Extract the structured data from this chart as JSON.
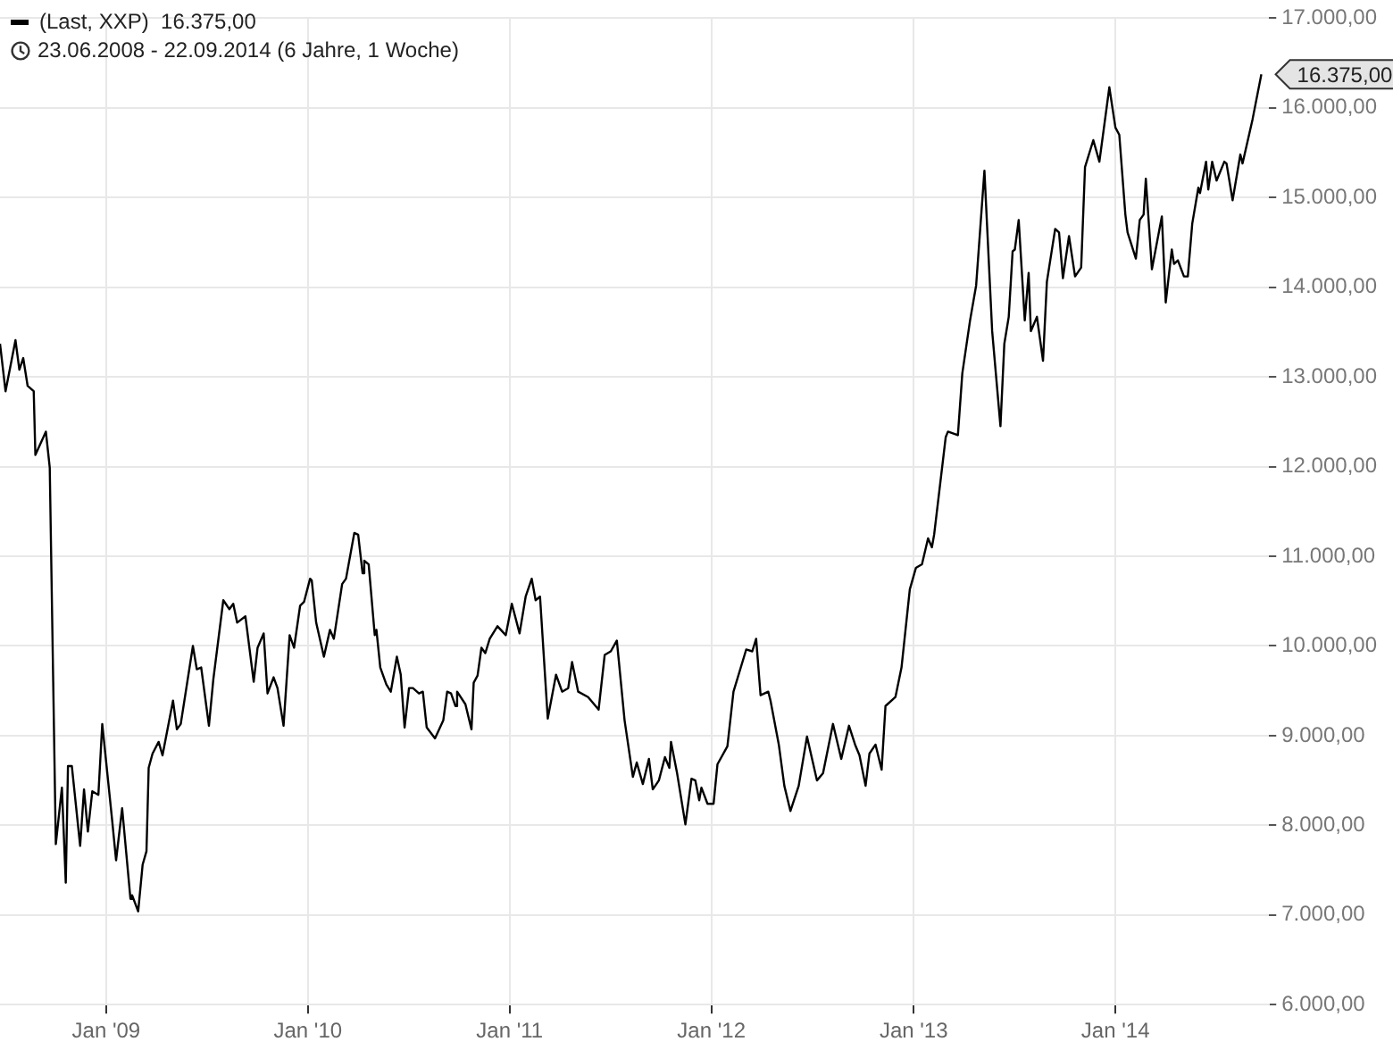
{
  "chart_data": {
    "type": "line",
    "subtitle": "23.06.2008 - 22.09.2014 (6 Jahre, 1 Woche)",
    "legend": "top left",
    "grid": true,
    "marker": "none",
    "line_style": "solid",
    "xlim": [
      "2008-06-23",
      "2014-10-06"
    ],
    "xticks": [
      {
        "value": "2009-01-01",
        "label": "Jan '09"
      },
      {
        "value": "2010-01-01",
        "label": "Jan '10"
      },
      {
        "value": "2011-01-01",
        "label": "Jan '11"
      },
      {
        "value": "2012-01-01",
        "label": "Jan '12"
      },
      {
        "value": "2013-01-01",
        "label": "Jan '13"
      },
      {
        "value": "2014-01-01",
        "label": "Jan '14"
      }
    ],
    "ylim": [
      6000,
      17000
    ],
    "yticks": [
      {
        "value": 6000,
        "label": "6.000,00"
      },
      {
        "value": 7000,
        "label": "7.000,00"
      },
      {
        "value": 8000,
        "label": "8.000,00"
      },
      {
        "value": 9000,
        "label": "9.000,00"
      },
      {
        "value": 10000,
        "label": "10.000,00"
      },
      {
        "value": 11000,
        "label": "11.000,00"
      },
      {
        "value": 12000,
        "label": "12.000,00"
      },
      {
        "value": 13000,
        "label": "13.000,00"
      },
      {
        "value": 14000,
        "label": "14.000,00"
      },
      {
        "value": 15000,
        "label": "15.000,00"
      },
      {
        "value": 16000,
        "label": "16.000,00"
      },
      {
        "value": 17000,
        "label": "17.000,00"
      }
    ],
    "annotations": [
      {
        "text": "16.375,00",
        "x": "2014-09-22",
        "y": 16375
      }
    ],
    "x": [
      "2008-06-23",
      "2008-07-03",
      "2008-07-21",
      "2008-07-28",
      "2008-08-04",
      "2008-08-12",
      "2008-08-23",
      "2008-08-26",
      "2008-09-14",
      "2008-09-21",
      "2008-10-02",
      "2008-10-13",
      "2008-10-20",
      "2008-10-24",
      "2008-10-31",
      "2008-11-15",
      "2008-11-22",
      "2008-11-29",
      "2008-12-07",
      "2008-12-18",
      "2008-12-25",
      "2009-01-12",
      "2009-01-19",
      "2009-01-30",
      "2009-02-14",
      "2009-02-17",
      "2009-02-28",
      "2009-03-08",
      "2009-03-15",
      "2009-03-19",
      "2009-03-26",
      "2009-04-06",
      "2009-04-13",
      "2009-05-02",
      "2009-05-09",
      "2009-05-16",
      "2009-06-07",
      "2009-06-14",
      "2009-06-22",
      "2009-07-06",
      "2009-07-14",
      "2009-08-01",
      "2009-08-12",
      "2009-08-19",
      "2009-08-26",
      "2009-09-10",
      "2009-09-25",
      "2009-10-02",
      "2009-10-13",
      "2009-10-20",
      "2009-10-31",
      "2009-11-07",
      "2009-11-18",
      "2009-11-29",
      "2009-12-07",
      "2009-12-18",
      "2009-12-25",
      "2010-01-05",
      "2010-01-08",
      "2010-01-16",
      "2010-01-30",
      "2010-02-10",
      "2010-02-17",
      "2010-03-04",
      "2010-03-11",
      "2010-03-26",
      "2010-04-02",
      "2010-04-10",
      "2010-04-13",
      "2010-04-21",
      "2010-05-02",
      "2010-05-05",
      "2010-05-12",
      "2010-05-23",
      "2010-05-31",
      "2010-06-11",
      "2010-06-18",
      "2010-06-25",
      "2010-07-03",
      "2010-07-10",
      "2010-07-21",
      "2010-07-28",
      "2010-08-04",
      "2010-08-19",
      "2010-09-03",
      "2010-09-10",
      "2010-09-17",
      "2010-09-25",
      "2010-09-28",
      "2010-10-13",
      "2010-10-24",
      "2010-10-28",
      "2010-11-04",
      "2010-11-11",
      "2010-11-18",
      "2010-11-26",
      "2010-12-10",
      "2010-12-25",
      "2011-01-05",
      "2011-01-19",
      "2011-01-30",
      "2011-02-10",
      "2011-02-17",
      "2011-02-25",
      "2011-03-11",
      "2011-03-26",
      "2011-04-06",
      "2011-04-17",
      "2011-04-24",
      "2011-05-05",
      "2011-05-23",
      "2011-06-11",
      "2011-06-22",
      "2011-07-03",
      "2011-07-14",
      "2011-07-28",
      "2011-08-12",
      "2011-08-19",
      "2011-08-30",
      "2011-09-10",
      "2011-09-17",
      "2011-09-28",
      "2011-10-09",
      "2011-10-17",
      "2011-10-20",
      "2011-10-31",
      "2011-11-15",
      "2011-11-26",
      "2011-12-03",
      "2011-12-10",
      "2011-12-14",
      "2011-12-25",
      "2012-01-05",
      "2012-01-12",
      "2012-01-30",
      "2012-02-10",
      "2012-03-04",
      "2012-03-15",
      "2012-03-22",
      "2012-03-30",
      "2012-04-13",
      "2012-04-17",
      "2012-05-02",
      "2012-05-12",
      "2012-05-23",
      "2012-06-07",
      "2012-06-22",
      "2012-07-10",
      "2012-07-21",
      "2012-08-08",
      "2012-08-23",
      "2012-09-06",
      "2012-09-17",
      "2012-09-25",
      "2012-10-06",
      "2012-10-13",
      "2012-10-24",
      "2012-11-04",
      "2012-11-11",
      "2012-11-29",
      "2012-12-10",
      "2012-12-25",
      "2013-01-05",
      "2013-01-16",
      "2013-01-27",
      "2013-02-03",
      "2013-02-07",
      "2013-02-28",
      "2013-03-04",
      "2013-03-22",
      "2013-03-30",
      "2013-04-13",
      "2013-04-24",
      "2013-05-09",
      "2013-05-23",
      "2013-06-07",
      "2013-06-14",
      "2013-06-22",
      "2013-06-29",
      "2013-07-03",
      "2013-07-10",
      "2013-07-21",
      "2013-07-28",
      "2013-08-01",
      "2013-08-12",
      "2013-08-23",
      "2013-08-30",
      "2013-09-14",
      "2013-09-21",
      "2013-09-28",
      "2013-10-09",
      "2013-10-20",
      "2013-10-31",
      "2013-11-07",
      "2013-11-22",
      "2013-12-03",
      "2013-12-21",
      "2014-01-01",
      "2014-01-08",
      "2014-01-19",
      "2014-01-23",
      "2014-02-07",
      "2014-02-14",
      "2014-02-21",
      "2014-02-25",
      "2014-03-08",
      "2014-03-26",
      "2014-04-02",
      "2014-04-13",
      "2014-04-17",
      "2014-04-24",
      "2014-05-05",
      "2014-05-12",
      "2014-05-20",
      "2014-05-31",
      "2014-06-03",
      "2014-06-14",
      "2014-06-18",
      "2014-06-25",
      "2014-07-03",
      "2014-07-17",
      "2014-07-21",
      "2014-08-01",
      "2014-08-15",
      "2014-08-19",
      "2014-09-06",
      "2014-09-22"
    ],
    "series": [
      {
        "name": "(Last, XXP)  16.375,00",
        "color": "#000000",
        "values": [
          13370,
          12840,
          13410,
          13080,
          13210,
          12900,
          12840,
          12130,
          12390,
          11990,
          7790,
          8420,
          7360,
          8660,
          8660,
          7770,
          8400,
          7930,
          8380,
          8340,
          9130,
          8050,
          7610,
          8190,
          7180,
          7220,
          7040,
          7560,
          7710,
          8640,
          8800,
          8930,
          8780,
          9390,
          9070,
          9130,
          10000,
          9740,
          9760,
          9110,
          9630,
          10510,
          10410,
          10470,
          10260,
          10330,
          9600,
          9980,
          10140,
          9470,
          9650,
          9530,
          9110,
          10120,
          9980,
          10450,
          10490,
          10750,
          10730,
          10260,
          9880,
          10180,
          10080,
          10690,
          10750,
          11260,
          11240,
          10810,
          10950,
          10910,
          10120,
          10180,
          9760,
          9570,
          9490,
          9880,
          9680,
          9090,
          9530,
          9530,
          9470,
          9490,
          9090,
          8970,
          9170,
          9490,
          9470,
          9330,
          9490,
          9350,
          9070,
          9590,
          9670,
          9980,
          9920,
          10080,
          10220,
          10120,
          10470,
          10140,
          10550,
          10750,
          10510,
          10550,
          9190,
          9680,
          9490,
          9530,
          9820,
          9490,
          9430,
          9290,
          9900,
          9940,
          10060,
          9170,
          8540,
          8700,
          8460,
          8740,
          8400,
          8500,
          8760,
          8640,
          8930,
          8580,
          8010,
          8520,
          8500,
          8280,
          8420,
          8240,
          8240,
          8680,
          8880,
          9490,
          9960,
          9940,
          10080,
          9450,
          9490,
          9390,
          8900,
          8440,
          8160,
          8440,
          8990,
          8500,
          8580,
          9130,
          8740,
          9110,
          8900,
          8780,
          8440,
          8800,
          8900,
          8620,
          9330,
          9430,
          9760,
          10630,
          10870,
          10910,
          11200,
          11100,
          11240,
          12330,
          12390,
          12350,
          13040,
          13630,
          14020,
          15300,
          13510,
          12450,
          13370,
          13670,
          14400,
          14420,
          14750,
          13630,
          14160,
          13510,
          13670,
          13180,
          14060,
          14650,
          14610,
          14100,
          14570,
          14120,
          14220,
          15340,
          15640,
          15400,
          16230,
          15780,
          15700,
          14810,
          14610,
          14320,
          14750,
          14810,
          15210,
          14200,
          14790,
          13830,
          14420,
          14260,
          14300,
          14120,
          14120,
          14710,
          15110,
          15050,
          15400,
          15090,
          15400,
          15190,
          15400,
          15380,
          14970,
          15480,
          15380,
          15870,
          16375
        ]
      }
    ]
  }
}
